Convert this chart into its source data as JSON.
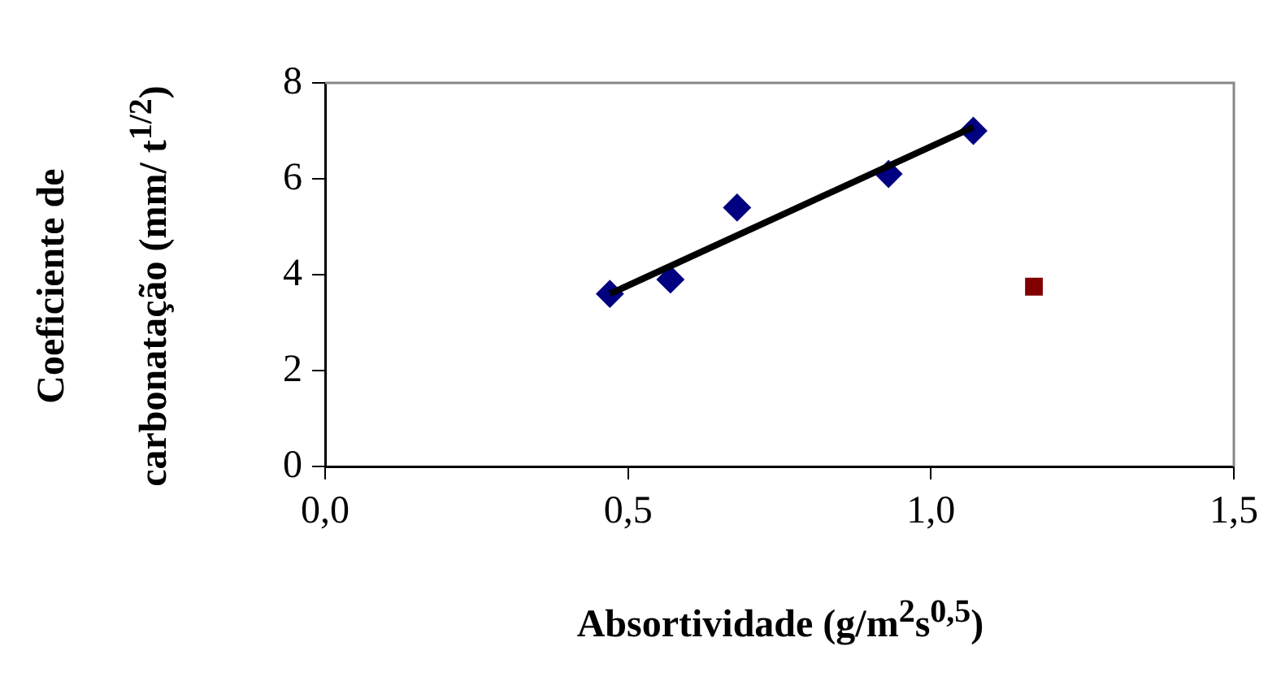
{
  "chart_data": {
    "type": "scatter",
    "xlabel": "Absortividade (g/m$^{2}$s$^{0,5}$)",
    "ylabel": "Coeficiente de\ncarbonatação (mm/ t$^{1/2}$)",
    "xlim": [
      0,
      1.5
    ],
    "xticks": [
      {
        "value": 0,
        "label": "0,0"
      },
      {
        "value": 0.5,
        "label": "0,5"
      },
      {
        "value": 1,
        "label": "1,0"
      },
      {
        "value": 1.5,
        "label": "1,5"
      }
    ],
    "ylim": [
      0,
      8
    ],
    "yticks": [
      0,
      2,
      4,
      6,
      8
    ],
    "grid": false,
    "legend": false,
    "series": [
      {
        "marker": "diamond",
        "color": "#000080",
        "x": [
          0.47,
          0.57,
          0.68,
          0.93,
          1.07
        ],
        "values": [
          3.6,
          3.9,
          5.4,
          6.1,
          7.0
        ]
      },
      {
        "marker": "square",
        "color": "#800000",
        "x": [
          1.17
        ],
        "values": [
          3.75
        ]
      },
      {
        "type": "line",
        "marker": "none",
        "color": "#000000",
        "x": [
          0.47,
          1.07
        ],
        "values": [
          3.6,
          7.08
        ]
      }
    ]
  }
}
